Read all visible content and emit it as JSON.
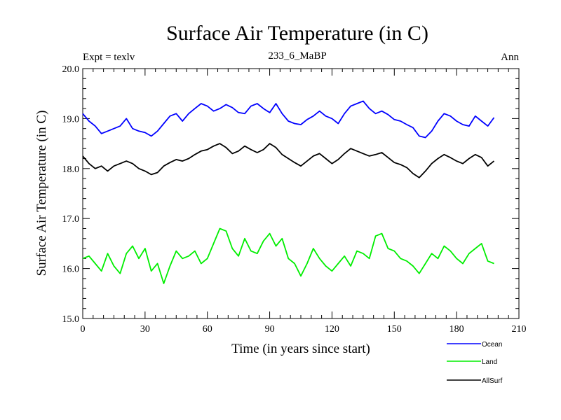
{
  "chart_data": {
    "type": "line",
    "title": "Surface Air Temperature (in C)",
    "subtitle": "233_6_MaBP",
    "left_label": "Expt = texlv",
    "right_label": "Ann",
    "xlabel": "Time (in years since start)",
    "ylabel": "Surface Air Temperature (in C)",
    "xlim": [
      0,
      210
    ],
    "ylim": [
      15.0,
      20.0
    ],
    "x_ticks": [
      0,
      30,
      60,
      90,
      120,
      150,
      180,
      210
    ],
    "x_tick_labels": [
      "0",
      "30",
      "60",
      "90",
      "120",
      "150",
      "180",
      "210"
    ],
    "y_ticks": [
      15.0,
      16.0,
      17.0,
      18.0,
      19.0,
      20.0
    ],
    "y_tick_labels": [
      "15.0",
      "16.0",
      "17.0",
      "18.0",
      "19.0",
      "20.0"
    ],
    "grid": false,
    "legend_position": "bottom-right, below plot",
    "x": [
      0,
      3,
      6,
      9,
      12,
      15,
      18,
      21,
      24,
      27,
      30,
      33,
      36,
      39,
      42,
      45,
      48,
      51,
      54,
      57,
      60,
      63,
      66,
      69,
      72,
      75,
      78,
      81,
      84,
      87,
      90,
      93,
      96,
      99,
      102,
      105,
      108,
      111,
      114,
      117,
      120,
      123,
      126,
      129,
      132,
      135,
      138,
      141,
      144,
      147,
      150,
      153,
      156,
      159,
      162,
      165,
      168,
      171,
      174,
      177,
      180,
      183,
      186,
      189,
      192,
      195,
      198
    ],
    "series": [
      {
        "name": "Ocean",
        "color": "#0000ff",
        "values": [
          19.1,
          18.95,
          18.85,
          18.7,
          18.75,
          18.8,
          18.85,
          19.0,
          18.8,
          18.75,
          18.72,
          18.65,
          18.75,
          18.9,
          19.05,
          19.1,
          18.95,
          19.1,
          19.2,
          19.3,
          19.25,
          19.15,
          19.2,
          19.28,
          19.22,
          19.12,
          19.1,
          19.25,
          19.3,
          19.2,
          19.12,
          19.3,
          19.1,
          18.95,
          18.9,
          18.88,
          18.98,
          19.05,
          19.15,
          19.05,
          19.0,
          18.9,
          19.1,
          19.25,
          19.3,
          19.35,
          19.2,
          19.1,
          19.15,
          19.08,
          18.98,
          18.95,
          18.88,
          18.82,
          18.65,
          18.62,
          18.75,
          18.95,
          19.1,
          19.05,
          18.95,
          18.88,
          18.85,
          19.05,
          18.95,
          18.85,
          19.02
        ]
      },
      {
        "name": "Land",
        "color": "#00ee00",
        "values": [
          16.2,
          16.25,
          16.1,
          15.95,
          16.3,
          16.05,
          15.9,
          16.3,
          16.45,
          16.2,
          16.4,
          15.95,
          16.1,
          15.7,
          16.05,
          16.35,
          16.2,
          16.25,
          16.35,
          16.1,
          16.2,
          16.5,
          16.8,
          16.75,
          16.4,
          16.25,
          16.6,
          16.35,
          16.3,
          16.55,
          16.7,
          16.45,
          16.6,
          16.2,
          16.1,
          15.85,
          16.1,
          16.4,
          16.2,
          16.05,
          15.95,
          16.1,
          16.25,
          16.05,
          16.35,
          16.3,
          16.2,
          16.65,
          16.7,
          16.4,
          16.35,
          16.2,
          16.15,
          16.05,
          15.9,
          16.1,
          16.3,
          16.2,
          16.45,
          16.35,
          16.2,
          16.1,
          16.3,
          16.4,
          16.5,
          16.15,
          16.1
        ]
      },
      {
        "name": "AllSurf",
        "color": "#000000",
        "values": [
          18.25,
          18.1,
          18.0,
          18.05,
          17.95,
          18.05,
          18.1,
          18.15,
          18.1,
          18.0,
          17.95,
          17.88,
          17.92,
          18.05,
          18.12,
          18.18,
          18.15,
          18.2,
          18.28,
          18.35,
          18.38,
          18.45,
          18.5,
          18.42,
          18.3,
          18.35,
          18.45,
          18.38,
          18.32,
          18.38,
          18.5,
          18.42,
          18.28,
          18.2,
          18.12,
          18.05,
          18.15,
          18.25,
          18.3,
          18.2,
          18.1,
          18.18,
          18.3,
          18.4,
          18.35,
          18.3,
          18.25,
          18.28,
          18.32,
          18.22,
          18.12,
          18.08,
          18.02,
          17.9,
          17.82,
          17.95,
          18.1,
          18.2,
          18.28,
          18.22,
          18.15,
          18.1,
          18.2,
          18.28,
          18.22,
          18.05,
          18.15
        ]
      }
    ]
  }
}
